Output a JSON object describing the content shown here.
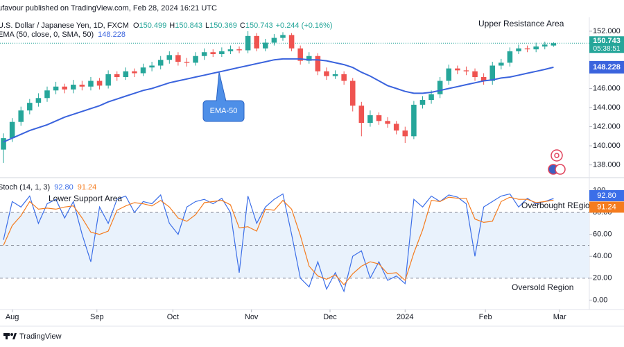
{
  "header": {
    "publisher": "ufavour published on TradingView.com, Feb 28, 2024 16:21 UTC"
  },
  "chart_data": [
    {
      "type": "candlestick",
      "title": "U.S. Dollar / Japanese Yen, 1D, FXCM",
      "ohlc_letters": [
        "O",
        "H",
        "L",
        "C"
      ],
      "change_label": "+0.244 (+0.16%)",
      "countdown": "05:38:51",
      "up_color": "#26a69a",
      "down_color": "#ef5350",
      "open": [
        139.6,
        140.8,
        142.5,
        143.7,
        144.5,
        145.0,
        145.8,
        146.2,
        145.9,
        146.4,
        146.2,
        146.8,
        146.3,
        147.5,
        147.2,
        147.8,
        147.6,
        148.2,
        148.4,
        149.0,
        149.5,
        148.8,
        148.7,
        149.4,
        149.8,
        149.6,
        149.9,
        150.1,
        150.0,
        151.5,
        150.2,
        150.8,
        151.3,
        151.6,
        150.2,
        148.9,
        149.4,
        147.8,
        147.3,
        147.5,
        146.8,
        144.2,
        142.4,
        143.2,
        142.6,
        142.3,
        141.6,
        141.0,
        144.3,
        144.8,
        145.4,
        146.8,
        148.1,
        147.9,
        147.8,
        147.2,
        146.8,
        148.4,
        148.7,
        149.9,
        150.2,
        150.1,
        150.4,
        150.499
      ],
      "high": [
        141.3,
        142.9,
        144.1,
        144.9,
        145.5,
        146.2,
        146.7,
        146.5,
        146.9,
        146.8,
        147.2,
        147.1,
        147.9,
        147.8,
        148.2,
        148.1,
        148.6,
        148.8,
        149.4,
        149.9,
        149.8,
        149.2,
        149.8,
        150.2,
        150.1,
        150.3,
        150.5,
        150.4,
        152.0,
        151.8,
        151.2,
        151.7,
        151.9,
        151.8,
        150.5,
        149.8,
        149.7,
        148.2,
        147.9,
        147.8,
        147.1,
        144.6,
        143.7,
        143.5,
        143.0,
        142.6,
        142.0,
        144.7,
        145.2,
        145.8,
        147.2,
        148.5,
        148.4,
        148.3,
        148.1,
        147.6,
        148.8,
        149.1,
        150.3,
        150.6,
        150.5,
        150.8,
        150.9,
        150.843
      ],
      "low": [
        138.2,
        140.4,
        142.1,
        143.3,
        144.1,
        144.6,
        145.4,
        145.5,
        145.5,
        145.8,
        145.8,
        145.9,
        146.0,
        146.8,
        146.9,
        147.2,
        147.3,
        147.8,
        148.0,
        148.6,
        148.4,
        148.3,
        148.4,
        149.0,
        149.3,
        149.3,
        149.6,
        149.7,
        149.7,
        149.9,
        149.9,
        150.5,
        151.0,
        149.9,
        148.5,
        148.6,
        147.4,
        146.9,
        147.0,
        146.4,
        143.6,
        141.0,
        142.0,
        142.2,
        141.9,
        141.2,
        140.3,
        140.7,
        143.9,
        144.4,
        145.0,
        146.4,
        147.5,
        147.4,
        146.8,
        146.4,
        146.4,
        148.0,
        148.3,
        149.6,
        149.8,
        149.8,
        150.1,
        150.369
      ],
      "close": [
        140.8,
        142.5,
        143.7,
        144.5,
        145.0,
        145.8,
        146.2,
        145.9,
        146.4,
        146.2,
        146.8,
        146.3,
        147.5,
        147.2,
        147.8,
        147.6,
        148.2,
        148.4,
        149.0,
        149.5,
        148.8,
        148.7,
        149.4,
        149.8,
        149.6,
        149.9,
        150.1,
        150.0,
        151.5,
        150.2,
        150.8,
        151.3,
        151.6,
        150.2,
        148.9,
        149.4,
        147.8,
        147.3,
        147.5,
        146.8,
        144.2,
        142.4,
        143.2,
        142.6,
        142.3,
        141.6,
        141.0,
        144.3,
        144.8,
        145.4,
        146.8,
        148.1,
        147.9,
        147.8,
        147.2,
        146.8,
        148.4,
        148.7,
        149.9,
        150.2,
        150.1,
        150.4,
        150.6,
        150.743
      ],
      "indicators": [
        {
          "name": "EMA (50, close, 0, SMA, 50)",
          "color": "#3a63dd",
          "values": [
            140.4,
            140.8,
            141.2,
            141.6,
            141.9,
            142.2,
            142.6,
            143.0,
            143.3,
            143.6,
            143.9,
            144.2,
            144.6,
            144.9,
            145.2,
            145.5,
            145.8,
            146.0,
            146.3,
            146.6,
            146.8,
            147.0,
            147.2,
            147.4,
            147.6,
            147.8,
            148.0,
            148.2,
            148.4,
            148.6,
            148.8,
            149.0,
            149.1,
            149.1,
            149.1,
            149.0,
            149.0,
            148.9,
            148.7,
            148.5,
            148.2,
            147.7,
            147.3,
            146.8,
            146.3,
            146.0,
            145.7,
            145.5,
            145.5,
            145.6,
            145.8,
            146.0,
            146.2,
            146.4,
            146.6,
            146.8,
            146.9,
            147.1,
            147.2,
            147.4,
            147.6,
            147.8,
            148.0,
            148.228
          ]
        }
      ],
      "annotations": [
        "Upper Resistance Area",
        "EMA-50"
      ],
      "xlim": [
        -0.4,
        67.1
      ],
      "ylim": [
        137.1,
        153.45
      ],
      "yticks": [
        {
          "value": 138,
          "label": "138.000"
        },
        {
          "value": 140,
          "label": "140.000"
        },
        {
          "value": 142,
          "label": "142.000"
        },
        {
          "value": 144,
          "label": "144.000"
        },
        {
          "value": 146,
          "label": "146.000"
        },
        {
          "value": 148,
          "label": "148.000"
        },
        {
          "value": 150,
          "label": "150.000"
        },
        {
          "value": 152,
          "label": "152.000"
        }
      ]
    },
    {
      "type": "line",
      "title": "Stoch (14, 1, 3)",
      "series": [
        {
          "color": "#3b6ee8",
          "last_label": "92.80",
          "values": [
            55,
            90,
            85,
            95,
            70,
            88,
            92,
            75,
            90,
            60,
            35,
            85,
            70,
            92,
            95,
            80,
            90,
            88,
            96,
            70,
            60,
            85,
            90,
            92,
            88,
            93,
            80,
            25,
            95,
            70,
            85,
            92,
            97,
            60,
            20,
            12,
            35,
            10,
            25,
            8,
            40,
            45,
            20,
            35,
            18,
            22,
            15,
            92,
            85,
            95,
            90,
            96,
            94,
            88,
            40,
            85,
            90,
            95,
            97,
            85,
            93,
            88,
            90,
            92.8
          ]
        },
        {
          "color": "#f57c1f",
          "values": [
            50,
            68,
            77,
            90,
            83,
            84,
            83,
            85,
            86,
            75,
            62,
            60,
            63,
            82,
            86,
            89,
            88,
            86,
            91,
            85,
            75,
            72,
            78,
            89,
            90,
            91,
            87,
            66,
            67,
            63,
            83,
            82,
            91,
            83,
            59,
            31,
            22,
            19,
            23,
            14,
            24,
            31,
            35,
            33,
            24,
            25,
            18,
            43,
            64,
            91,
            90,
            94,
            93,
            93,
            74,
            71,
            72,
            90,
            94,
            92,
            92,
            89,
            90,
            91.24
          ]
        }
      ],
      "bands": [
        20,
        50,
        80
      ],
      "band_fill": "#e9f2fc",
      "annotations": [
        "Lower Support Area",
        "Overbought REgion",
        "Oversold Region"
      ],
      "xlim": [
        -0.4,
        67.1
      ],
      "xticks": [
        {
          "value": 1,
          "label": "Aug"
        },
        {
          "value": 10.7,
          "label": "Sep"
        },
        {
          "value": 19.4,
          "label": "Oct"
        },
        {
          "value": 28.4,
          "label": "Nov"
        },
        {
          "value": 37.4,
          "label": "Dec"
        },
        {
          "value": 46,
          "label": "2024"
        },
        {
          "value": 55.2,
          "label": "Feb"
        },
        {
          "value": 63.7,
          "label": "Mar"
        }
      ],
      "ylim": [
        -8,
        108
      ],
      "yticks": [
        {
          "value": 0,
          "label": "0.00"
        },
        {
          "value": 20,
          "label": "20.00"
        },
        {
          "value": 40,
          "label": "40.00"
        },
        {
          "value": 60,
          "label": "60.00"
        },
        {
          "value": 80,
          "label": "80.00"
        },
        100
      ]
    }
  ],
  "footer": {
    "brand": "TradingView"
  }
}
